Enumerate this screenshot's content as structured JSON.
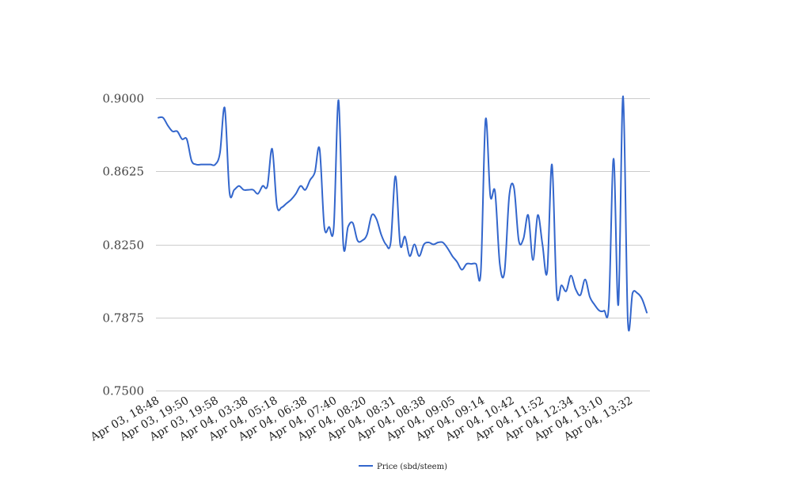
{
  "chart_data": {
    "type": "line",
    "title": "",
    "xlabel": "",
    "ylabel": "",
    "ylim": [
      0.75,
      0.9
    ],
    "yticks": [
      "0.9000",
      "0.8625",
      "0.8250",
      "0.7875",
      "0.7500"
    ],
    "ytick_values": [
      0.9,
      0.8625,
      0.825,
      0.7875,
      0.75
    ],
    "xtick_labels": [
      "Apr 03, 18:48",
      "Apr 03, 19:50",
      "Apr 03, 19:58",
      "Apr 04, 03:38",
      "Apr 04, 05:18",
      "Apr 04, 06:38",
      "Apr 04, 07:40",
      "Apr 04, 08:20",
      "Apr 04, 08:31",
      "Apr 04, 08:38",
      "Apr 04, 09:05",
      "Apr 04, 09:14",
      "Apr 04, 10:42",
      "Apr 04, 11:52",
      "Apr 04, 12:34",
      "Apr 04, 13:10",
      "Apr 04, 13:32"
    ],
    "grid": true,
    "legend_position": "bottom",
    "series": [
      {
        "name": "Price (sbd/steem)",
        "color": "#3366cc",
        "values": [
          0.89,
          0.89,
          0.886,
          0.883,
          0.883,
          0.879,
          0.879,
          0.868,
          0.866,
          0.866,
          0.866,
          0.866,
          0.866,
          0.872,
          0.895,
          0.852,
          0.853,
          0.855,
          0.853,
          0.853,
          0.853,
          0.851,
          0.855,
          0.855,
          0.874,
          0.845,
          0.844,
          0.846,
          0.848,
          0.851,
          0.855,
          0.853,
          0.858,
          0.862,
          0.874,
          0.834,
          0.834,
          0.834,
          0.899,
          0.825,
          0.834,
          0.836,
          0.827,
          0.827,
          0.83,
          0.84,
          0.838,
          0.83,
          0.825,
          0.826,
          0.86,
          0.825,
          0.829,
          0.819,
          0.825,
          0.819,
          0.825,
          0.826,
          0.825,
          0.826,
          0.826,
          0.823,
          0.819,
          0.816,
          0.812,
          0.815,
          0.815,
          0.815,
          0.811,
          0.889,
          0.85,
          0.852,
          0.815,
          0.811,
          0.85,
          0.854,
          0.827,
          0.828,
          0.84,
          0.817,
          0.84,
          0.825,
          0.811,
          0.866,
          0.8,
          0.804,
          0.801,
          0.809,
          0.802,
          0.799,
          0.807,
          0.798,
          0.794,
          0.791,
          0.791,
          0.794,
          0.869,
          0.794,
          0.901,
          0.786,
          0.8,
          0.8,
          0.797,
          0.79
        ]
      }
    ]
  }
}
